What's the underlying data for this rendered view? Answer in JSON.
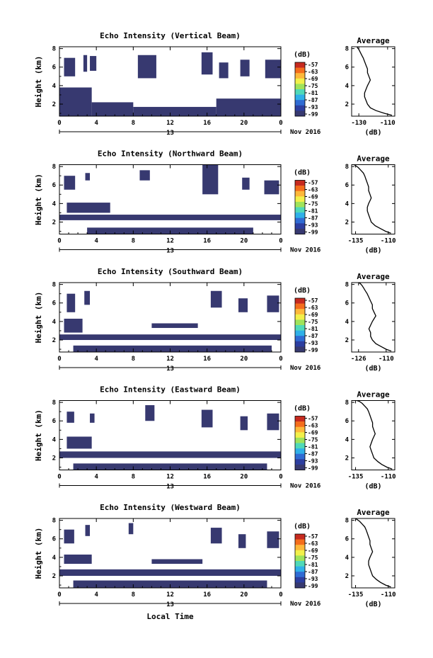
{
  "figure": {
    "xlabel_bottom": "Local Time",
    "date_label": "Nov 2016",
    "day_label": "13",
    "colorbar_unit": "(dB)",
    "colorbar_ticks": [
      "-57",
      "-63",
      "-69",
      "-75",
      "-81",
      "-87",
      "-93",
      "-99"
    ],
    "colorbar_colors": [
      "#c62a1f",
      "#f46d1c",
      "#fdb83a",
      "#f2f04a",
      "#9fe35b",
      "#4fd9b8",
      "#2fb0e8",
      "#2f6bd3",
      "#2c3ea0",
      "#373970"
    ],
    "echo_color": "#373970"
  },
  "chart_data": [
    {
      "type": "heatmap",
      "title": "Echo Intensity (Vertical Beam)",
      "ylabel": "Height (km)",
      "xticks": [
        "0",
        "4",
        "8",
        "12",
        "16",
        "20",
        "0"
      ],
      "yticks": [
        "2",
        "4",
        "6",
        "8"
      ],
      "xlim": [
        0,
        24
      ],
      "ylim": [
        0.7,
        8.2
      ],
      "echo_regions": [
        {
          "t0": 0.5,
          "t1": 1.7,
          "h0": 5.0,
          "h1": 7.0
        },
        {
          "t0": 2.6,
          "t1": 3.0,
          "h0": 5.5,
          "h1": 7.3
        },
        {
          "t0": 3.3,
          "t1": 4.0,
          "h0": 5.6,
          "h1": 7.2
        },
        {
          "t0": 8.5,
          "t1": 10.5,
          "h0": 4.8,
          "h1": 7.3
        },
        {
          "t0": 15.4,
          "t1": 16.6,
          "h0": 5.2,
          "h1": 7.6
        },
        {
          "t0": 17.3,
          "t1": 18.3,
          "h0": 4.8,
          "h1": 6.5
        },
        {
          "t0": 19.6,
          "t1": 20.6,
          "h0": 5.0,
          "h1": 6.8
        },
        {
          "t0": 22.3,
          "t1": 24.0,
          "h0": 4.8,
          "h1": 6.8
        },
        {
          "t0": 0.0,
          "t1": 3.5,
          "h0": 0.7,
          "h1": 3.8
        },
        {
          "t0": 3.5,
          "t1": 8.0,
          "h0": 0.7,
          "h1": 2.2
        },
        {
          "t0": 8.0,
          "t1": 17.0,
          "h0": 0.7,
          "h1": 1.7
        },
        {
          "t0": 17.0,
          "t1": 24.0,
          "h0": 0.7,
          "h1": 2.6
        }
      ],
      "average": {
        "xlabel": "(dB)",
        "title": "Average",
        "xticks": [
          "-130",
          "-110"
        ],
        "yticks": [
          "2",
          "4",
          "6",
          "8"
        ],
        "xlim": [
          -135,
          -105
        ],
        "ylim": [
          0.7,
          8.2
        ],
        "x": [
          -107,
          -112,
          -118,
          -122,
          -124,
          -125,
          -126,
          -126,
          -125,
          -124,
          -123,
          -122,
          -123,
          -124,
          -124,
          -125,
          -126,
          -127,
          -128,
          -129,
          -130,
          -131,
          -131
        ],
        "y": [
          0.8,
          1.0,
          1.3,
          1.6,
          2.0,
          2.4,
          2.8,
          3.2,
          3.6,
          4.0,
          4.3,
          4.6,
          5.0,
          5.4,
          5.8,
          6.2,
          6.6,
          7.0,
          7.3,
          7.6,
          7.9,
          8.1,
          8.2
        ]
      }
    },
    {
      "type": "heatmap",
      "title": "Echo Intensity (Northward Beam)",
      "ylabel": "Height (km)",
      "xticks": [
        "0",
        "4",
        "8",
        "12",
        "16",
        "20",
        "0"
      ],
      "yticks": [
        "2",
        "4",
        "6",
        "8"
      ],
      "xlim": [
        0,
        24
      ],
      "ylim": [
        0.7,
        8.2
      ],
      "echo_regions": [
        {
          "t0": 0.5,
          "t1": 1.7,
          "h0": 5.5,
          "h1": 7.0
        },
        {
          "t0": 2.8,
          "t1": 3.3,
          "h0": 6.5,
          "h1": 7.3
        },
        {
          "t0": 8.7,
          "t1": 9.8,
          "h0": 6.5,
          "h1": 7.6
        },
        {
          "t0": 15.5,
          "t1": 17.2,
          "h0": 5.0,
          "h1": 8.2
        },
        {
          "t0": 19.8,
          "t1": 20.6,
          "h0": 5.5,
          "h1": 6.8
        },
        {
          "t0": 22.2,
          "t1": 23.8,
          "h0": 5.0,
          "h1": 6.5
        },
        {
          "t0": 0.8,
          "t1": 5.5,
          "h0": 3.0,
          "h1": 4.1
        },
        {
          "t0": 0.0,
          "t1": 24.0,
          "h0": 2.2,
          "h1": 2.8
        },
        {
          "t0": 3.0,
          "t1": 21.0,
          "h0": 0.7,
          "h1": 1.4
        }
      ],
      "average": {
        "xlabel": "(dB)",
        "title": "Average",
        "xticks": [
          "-135",
          "-110"
        ],
        "yticks": [
          "2",
          "4",
          "6",
          "8"
        ],
        "xlim": [
          -138,
          -105
        ],
        "ylim": [
          0.7,
          8.2
        ],
        "x": [
          -108,
          -112,
          -116,
          -120,
          -123,
          -124,
          -125,
          -126,
          -126,
          -125,
          -124,
          -123,
          -124,
          -125,
          -125,
          -126,
          -127,
          -128,
          -129,
          -131,
          -133,
          -135,
          -136
        ],
        "y": [
          0.8,
          1.0,
          1.3,
          1.6,
          2.0,
          2.4,
          2.8,
          3.2,
          3.6,
          4.0,
          4.3,
          4.6,
          5.0,
          5.4,
          5.8,
          6.2,
          6.6,
          7.0,
          7.3,
          7.6,
          7.9,
          8.1,
          8.2
        ]
      }
    },
    {
      "type": "heatmap",
      "title": "Echo Intensity (Southward Beam)",
      "ylabel": "Height (km)",
      "xticks": [
        "0",
        "4",
        "8",
        "12",
        "16",
        "20",
        "0"
      ],
      "yticks": [
        "2",
        "4",
        "6",
        "8"
      ],
      "xlim": [
        0,
        24
      ],
      "ylim": [
        0.7,
        8.2
      ],
      "echo_regions": [
        {
          "t0": 0.8,
          "t1": 1.7,
          "h0": 5.0,
          "h1": 7.0
        },
        {
          "t0": 2.7,
          "t1": 3.3,
          "h0": 5.8,
          "h1": 7.3
        },
        {
          "t0": 16.4,
          "t1": 17.6,
          "h0": 5.5,
          "h1": 7.3
        },
        {
          "t0": 19.4,
          "t1": 20.4,
          "h0": 5.0,
          "h1": 6.5
        },
        {
          "t0": 22.5,
          "t1": 23.8,
          "h0": 5.0,
          "h1": 6.8
        },
        {
          "t0": 0.5,
          "t1": 2.5,
          "h0": 2.8,
          "h1": 4.3
        },
        {
          "t0": 10.0,
          "t1": 15.0,
          "h0": 3.3,
          "h1": 3.8
        },
        {
          "t0": 0.0,
          "t1": 24.0,
          "h0": 2.0,
          "h1": 2.6
        },
        {
          "t0": 1.5,
          "t1": 23.0,
          "h0": 0.7,
          "h1": 1.4
        }
      ],
      "average": {
        "xlabel": "(dB)",
        "title": "Average",
        "xticks": [
          "-126",
          "-110"
        ],
        "yticks": [
          "2",
          "4",
          "6",
          "8"
        ],
        "xlim": [
          -130,
          -105
        ],
        "ylim": [
          0.7,
          8.2
        ],
        "x": [
          -107,
          -110,
          -113,
          -116,
          -118,
          -119,
          -119,
          -120,
          -119,
          -118,
          -117,
          -116,
          -117,
          -118,
          -118,
          -119,
          -120,
          -121,
          -122,
          -123,
          -124,
          -125,
          -126
        ],
        "y": [
          0.8,
          1.0,
          1.3,
          1.6,
          2.0,
          2.4,
          2.8,
          3.2,
          3.6,
          4.0,
          4.3,
          4.6,
          5.0,
          5.4,
          5.8,
          6.2,
          6.6,
          7.0,
          7.3,
          7.6,
          7.9,
          8.1,
          8.2
        ]
      }
    },
    {
      "type": "heatmap",
      "title": "Echo Intensity (Eastward Beam)",
      "ylabel": "Height (km)",
      "xticks": [
        "0",
        "4",
        "8",
        "12",
        "16",
        "20",
        "0"
      ],
      "yticks": [
        "2",
        "4",
        "6",
        "8"
      ],
      "xlim": [
        0,
        24
      ],
      "ylim": [
        0.7,
        8.2
      ],
      "echo_regions": [
        {
          "t0": 0.8,
          "t1": 1.6,
          "h0": 5.8,
          "h1": 7.0
        },
        {
          "t0": 3.3,
          "t1": 3.8,
          "h0": 5.8,
          "h1": 6.8
        },
        {
          "t0": 9.3,
          "t1": 10.3,
          "h0": 6.0,
          "h1": 7.7
        },
        {
          "t0": 15.4,
          "t1": 16.6,
          "h0": 5.3,
          "h1": 7.2
        },
        {
          "t0": 19.6,
          "t1": 20.4,
          "h0": 5.0,
          "h1": 6.5
        },
        {
          "t0": 22.5,
          "t1": 23.8,
          "h0": 5.0,
          "h1": 6.8
        },
        {
          "t0": 0.8,
          "t1": 3.5,
          "h0": 3.0,
          "h1": 4.3
        },
        {
          "t0": 0.0,
          "t1": 24.0,
          "h0": 2.0,
          "h1": 2.7
        },
        {
          "t0": 1.5,
          "t1": 22.5,
          "h0": 0.7,
          "h1": 1.4
        }
      ],
      "average": {
        "xlabel": "(dB)",
        "title": "Average",
        "xticks": [
          "-135",
          "-110"
        ],
        "yticks": [
          "2",
          "4",
          "6",
          "8"
        ],
        "xlim": [
          -138,
          -105
        ],
        "ylim": [
          0.7,
          8.2
        ],
        "x": [
          -107,
          -111,
          -115,
          -118,
          -121,
          -122,
          -123,
          -124,
          -123,
          -122,
          -121,
          -120,
          -121,
          -122,
          -122,
          -123,
          -124,
          -125,
          -126,
          -128,
          -130,
          -132,
          -134
        ],
        "y": [
          0.8,
          1.0,
          1.3,
          1.6,
          2.0,
          2.4,
          2.8,
          3.2,
          3.6,
          4.0,
          4.3,
          4.6,
          5.0,
          5.4,
          5.8,
          6.2,
          6.6,
          7.0,
          7.3,
          7.6,
          7.9,
          8.1,
          8.2
        ]
      }
    },
    {
      "type": "heatmap",
      "title": "Echo Intensity (Westward Beam)",
      "ylabel": "Height (km)",
      "xticks": [
        "0",
        "4",
        "8",
        "12",
        "16",
        "20",
        "0"
      ],
      "yticks": [
        "2",
        "4",
        "6",
        "8"
      ],
      "xlim": [
        0,
        24
      ],
      "ylim": [
        0.7,
        8.2
      ],
      "echo_regions": [
        {
          "t0": 0.5,
          "t1": 1.6,
          "h0": 5.5,
          "h1": 7.0
        },
        {
          "t0": 2.8,
          "t1": 3.3,
          "h0": 6.3,
          "h1": 7.5
        },
        {
          "t0": 7.5,
          "t1": 8.0,
          "h0": 6.5,
          "h1": 7.7
        },
        {
          "t0": 16.4,
          "t1": 17.6,
          "h0": 5.5,
          "h1": 7.2
        },
        {
          "t0": 19.4,
          "t1": 20.2,
          "h0": 5.0,
          "h1": 6.5
        },
        {
          "t0": 22.5,
          "t1": 23.8,
          "h0": 5.0,
          "h1": 6.8
        },
        {
          "t0": 0.5,
          "t1": 3.5,
          "h0": 3.3,
          "h1": 4.3
        },
        {
          "t0": 10.0,
          "t1": 15.5,
          "h0": 3.3,
          "h1": 3.8
        },
        {
          "t0": 0.0,
          "t1": 24.0,
          "h0": 2.0,
          "h1": 2.7
        },
        {
          "t0": 1.5,
          "t1": 22.5,
          "h0": 0.7,
          "h1": 1.5
        }
      ],
      "average": {
        "xlabel": "(dB)",
        "title": "Average",
        "xticks": [
          "-135",
          "-110"
        ],
        "yticks": [
          "2",
          "4",
          "6",
          "8"
        ],
        "xlim": [
          -138,
          -105
        ],
        "ylim": [
          0.7,
          8.2
        ],
        "x": [
          -108,
          -112,
          -116,
          -119,
          -122,
          -123,
          -124,
          -125,
          -125,
          -124,
          -123,
          -122,
          -123,
          -124,
          -124,
          -125,
          -126,
          -127,
          -128,
          -130,
          -132,
          -134,
          -135
        ],
        "y": [
          0.8,
          1.0,
          1.3,
          1.6,
          2.0,
          2.4,
          2.8,
          3.2,
          3.6,
          4.0,
          4.3,
          4.6,
          5.0,
          5.4,
          5.8,
          6.2,
          6.6,
          7.0,
          7.3,
          7.6,
          7.9,
          8.1,
          8.2
        ]
      }
    }
  ]
}
